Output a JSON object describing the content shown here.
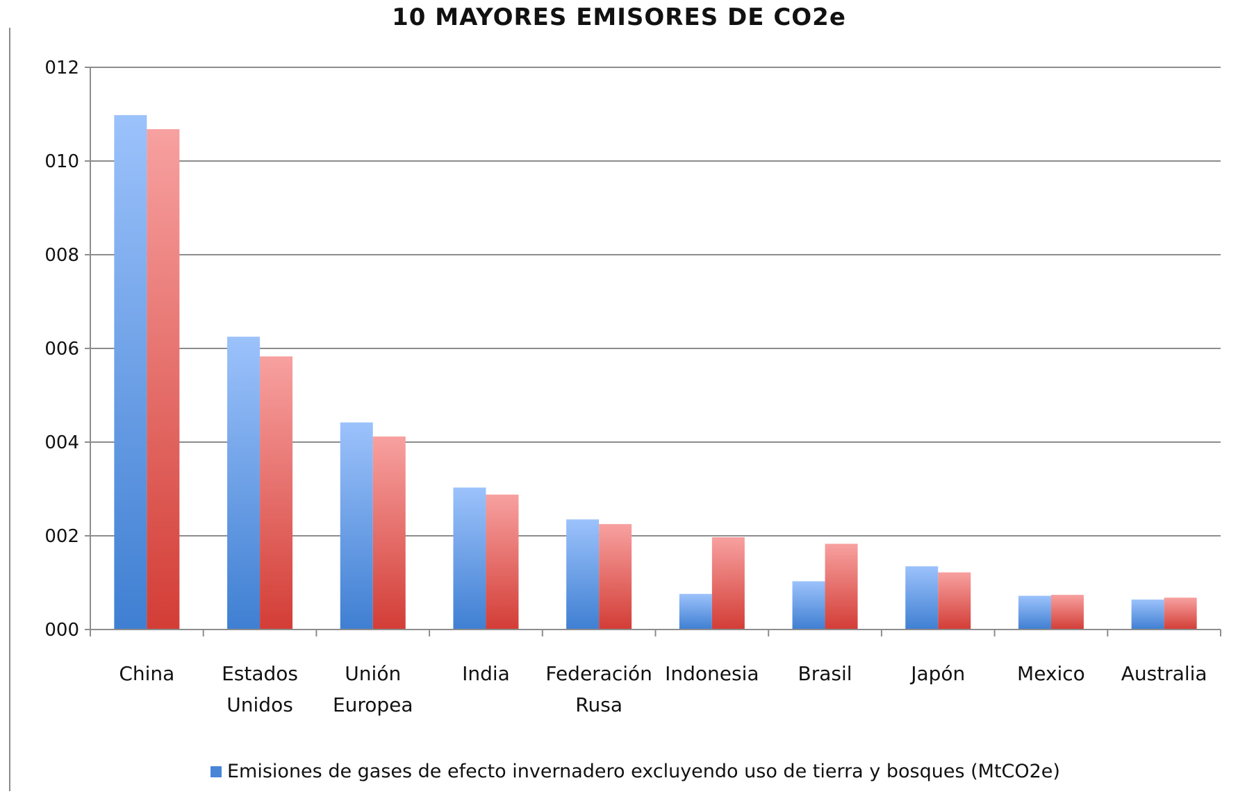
{
  "chart_data": {
    "type": "bar",
    "title": "10 MAYORES EMISORES DE CO2e",
    "categories": [
      [
        "China"
      ],
      [
        "Estados",
        "Unidos"
      ],
      [
        "Unión",
        "Europea"
      ],
      [
        "India"
      ],
      [
        "Federación",
        "Rusa"
      ],
      [
        "Indonesia"
      ],
      [
        "Brasil"
      ],
      [
        "Japón"
      ],
      [
        "Mexico"
      ],
      [
        "Australia"
      ]
    ],
    "series": [
      {
        "name": "Emisiones de gases de efecto invernadero excluyendo uso de tierra y bosques (MtCO2e)",
        "color_top": "#9cc2fb",
        "color_bottom": "#3f7fd2",
        "values": [
          10.98,
          6.25,
          4.42,
          3.03,
          2.35,
          0.76,
          1.03,
          1.35,
          0.72,
          0.64
        ]
      },
      {
        "color_top": "#f7a1a0",
        "color_bottom": "#d33d36",
        "values": [
          10.68,
          5.83,
          4.12,
          2.88,
          2.25,
          1.97,
          1.83,
          1.22,
          0.74,
          0.68
        ]
      }
    ],
    "yticks": [
      "000",
      "002",
      "004",
      "006",
      "008",
      "010",
      "012"
    ],
    "ylim": [
      0,
      12
    ],
    "grid": true,
    "legend": "bottom-center"
  }
}
